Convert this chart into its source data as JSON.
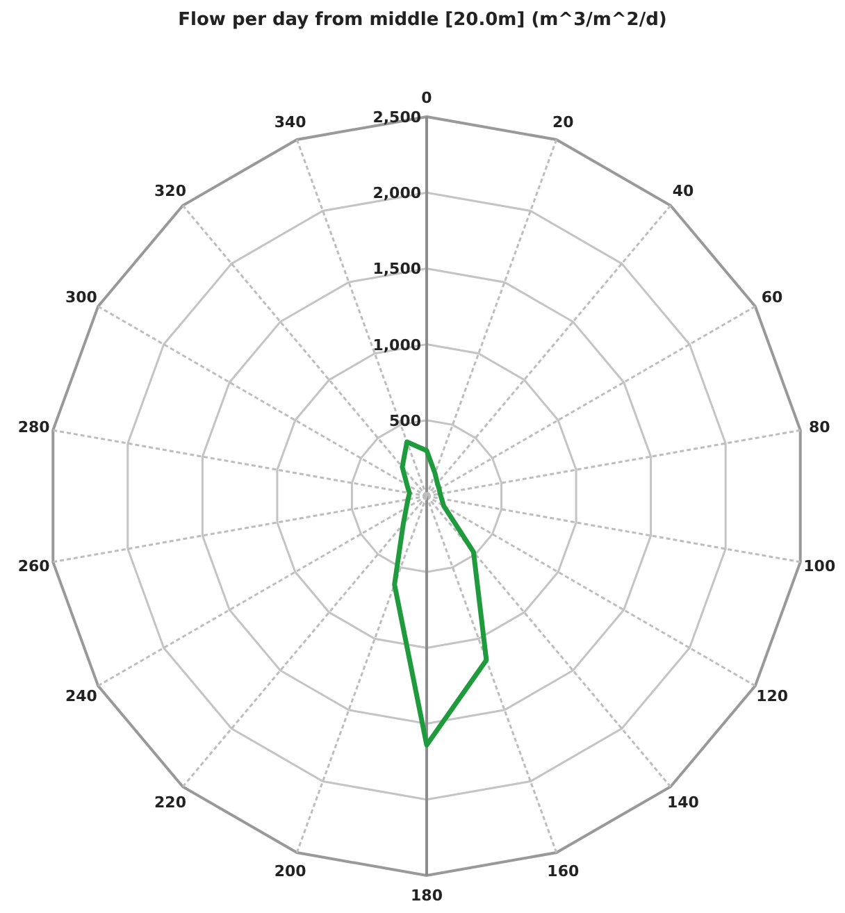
{
  "chart_data": {
    "type": "radar",
    "title": "Flow per day from middle [20.0m] (m^3/m^2/d)",
    "categories": [
      "0",
      "20",
      "40",
      "60",
      "80",
      "100",
      "120",
      "140",
      "160",
      "180",
      "200",
      "220",
      "240",
      "260",
      "280",
      "300",
      "320",
      "340"
    ],
    "series": [
      {
        "color": "#1f9a3c",
        "values": [
          300,
          160,
          110,
          95,
          90,
          100,
          130,
          480,
          1150,
          1640,
          620,
          240,
          155,
          125,
          115,
          150,
          250,
          380
        ]
      }
    ],
    "ylim": [
      0,
      2500
    ],
    "yticks": [
      500,
      {
        "value": 1000,
        "label": "1,000"
      },
      {
        "value": 1500,
        "label": "1,500"
      },
      {
        "value": 2000,
        "label": "2,000"
      },
      {
        "value": 2500,
        "label": "2,500"
      }
    ],
    "grid": true
  }
}
